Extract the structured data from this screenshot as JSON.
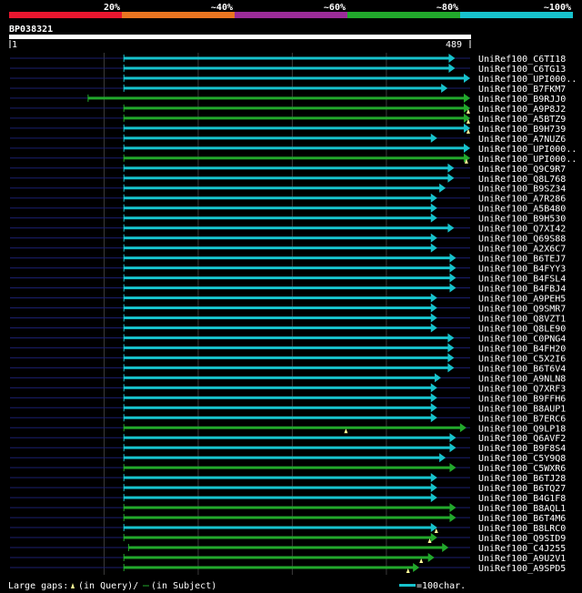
{
  "chart_data": {
    "type": "blast-hit-map",
    "query_name": "BP038321",
    "query_length": 489,
    "ruler_start": "1",
    "ruler_end": "489",
    "identity_legend": [
      {
        "label": "20%",
        "color": "#e8162f"
      },
      {
        "label": "~40%",
        "color": "#ea7521"
      },
      {
        "label": "~60%",
        "color": "#9b2c98"
      },
      {
        "label": "~80%",
        "color": "#22a82c"
      },
      {
        "label": "~100%",
        "color": "#17c2cc"
      }
    ],
    "colors": {
      "background": "#000000",
      "track": "#1b1f6e",
      "grid": "#3a3a3a",
      "gap_marker": "#ffff99"
    },
    "hits": [
      {
        "name": "UniRef100_C6TI18",
        "start": 121,
        "end": 473,
        "color": "#17c2cc",
        "gaps": []
      },
      {
        "name": "UniRef100_C6TG13",
        "start": 121,
        "end": 473,
        "color": "#17c2cc",
        "gaps": []
      },
      {
        "name": "UniRef100_UPI000..",
        "start": 121,
        "end": 489,
        "color": "#17c2cc",
        "gaps": []
      },
      {
        "name": "UniRef100_B7FKM7",
        "start": 121,
        "end": 465,
        "color": "#17c2cc",
        "gaps": []
      },
      {
        "name": "UniRef100_B9RJJ0",
        "start": 83,
        "end": 489,
        "color": "#22a82c",
        "gaps": []
      },
      {
        "name": "UniRef100_A9P8J2",
        "start": 121,
        "end": 489,
        "color": "#22a82c",
        "gaps": [
          487
        ]
      },
      {
        "name": "UniRef100_A5BTZ9",
        "start": 121,
        "end": 489,
        "color": "#22a82c",
        "gaps": [
          487
        ]
      },
      {
        "name": "UniRef100_B9H739",
        "start": 121,
        "end": 489,
        "color": "#17c2cc",
        "gaps": [
          487
        ]
      },
      {
        "name": "UniRef100_A7NUZ6",
        "start": 121,
        "end": 454,
        "color": "#17c2cc",
        "gaps": []
      },
      {
        "name": "UniRef100_UPI000..",
        "start": 121,
        "end": 489,
        "color": "#17c2cc",
        "gaps": []
      },
      {
        "name": "UniRef100_UPI000..",
        "start": 121,
        "end": 489,
        "color": "#22a82c",
        "gaps": [
          485
        ]
      },
      {
        "name": "UniRef100_Q9C9R7",
        "start": 121,
        "end": 472,
        "color": "#17c2cc",
        "gaps": []
      },
      {
        "name": "UniRef100_Q8L768",
        "start": 121,
        "end": 472,
        "color": "#17c2cc",
        "gaps": []
      },
      {
        "name": "UniRef100_B9SZ34",
        "start": 121,
        "end": 463,
        "color": "#17c2cc",
        "gaps": []
      },
      {
        "name": "UniRef100_A7R286",
        "start": 121,
        "end": 454,
        "color": "#17c2cc",
        "gaps": []
      },
      {
        "name": "UniRef100_A5B480",
        "start": 121,
        "end": 454,
        "color": "#17c2cc",
        "gaps": []
      },
      {
        "name": "UniRef100_B9H530",
        "start": 121,
        "end": 454,
        "color": "#17c2cc",
        "gaps": []
      },
      {
        "name": "UniRef100_Q7XI42",
        "start": 121,
        "end": 472,
        "color": "#17c2cc",
        "gaps": []
      },
      {
        "name": "UniRef100_Q69S88",
        "start": 121,
        "end": 454,
        "color": "#17c2cc",
        "gaps": []
      },
      {
        "name": "UniRef100_A2X6C7",
        "start": 121,
        "end": 454,
        "color": "#17c2cc",
        "gaps": []
      },
      {
        "name": "UniRef100_B6TEJ7",
        "start": 121,
        "end": 474,
        "color": "#17c2cc",
        "gaps": []
      },
      {
        "name": "UniRef100_B4FYY3",
        "start": 121,
        "end": 474,
        "color": "#17c2cc",
        "gaps": []
      },
      {
        "name": "UniRef100_B4FSL4",
        "start": 121,
        "end": 474,
        "color": "#17c2cc",
        "gaps": []
      },
      {
        "name": "UniRef100_B4FBJ4",
        "start": 121,
        "end": 474,
        "color": "#17c2cc",
        "gaps": []
      },
      {
        "name": "UniRef100_A9PEH5",
        "start": 121,
        "end": 454,
        "color": "#17c2cc",
        "gaps": []
      },
      {
        "name": "UniRef100_Q9SMR7",
        "start": 121,
        "end": 454,
        "color": "#17c2cc",
        "gaps": []
      },
      {
        "name": "UniRef100_Q8VZT1",
        "start": 121,
        "end": 454,
        "color": "#17c2cc",
        "gaps": []
      },
      {
        "name": "UniRef100_Q8LE90",
        "start": 121,
        "end": 454,
        "color": "#17c2cc",
        "gaps": []
      },
      {
        "name": "UniRef100_C0PNG4",
        "start": 121,
        "end": 472,
        "color": "#17c2cc",
        "gaps": []
      },
      {
        "name": "UniRef100_B4FH20",
        "start": 121,
        "end": 472,
        "color": "#17c2cc",
        "gaps": []
      },
      {
        "name": "UniRef100_C5X2I6",
        "start": 121,
        "end": 472,
        "color": "#17c2cc",
        "gaps": []
      },
      {
        "name": "UniRef100_B6T6V4",
        "start": 121,
        "end": 472,
        "color": "#17c2cc",
        "gaps": []
      },
      {
        "name": "UniRef100_A9NLN8",
        "start": 121,
        "end": 458,
        "color": "#17c2cc",
        "gaps": []
      },
      {
        "name": "UniRef100_Q7XRF3",
        "start": 121,
        "end": 454,
        "color": "#17c2cc",
        "gaps": []
      },
      {
        "name": "UniRef100_B9FFH6",
        "start": 121,
        "end": 454,
        "color": "#17c2cc",
        "gaps": []
      },
      {
        "name": "UniRef100_B8AUP1",
        "start": 121,
        "end": 454,
        "color": "#17c2cc",
        "gaps": []
      },
      {
        "name": "UniRef100_B7ERC6",
        "start": 121,
        "end": 454,
        "color": "#17c2cc",
        "gaps": []
      },
      {
        "name": "UniRef100_Q9LP18",
        "start": 121,
        "end": 485,
        "color": "#22a82c",
        "gaps": [
          357
        ]
      },
      {
        "name": "UniRef100_Q6AVF2",
        "start": 121,
        "end": 474,
        "color": "#17c2cc",
        "gaps": []
      },
      {
        "name": "UniRef100_B9F8S4",
        "start": 121,
        "end": 474,
        "color": "#17c2cc",
        "gaps": []
      },
      {
        "name": "UniRef100_C5Y9Q8",
        "start": 121,
        "end": 463,
        "color": "#17c2cc",
        "gaps": []
      },
      {
        "name": "UniRef100_C5WXR6",
        "start": 121,
        "end": 474,
        "color": "#22a82c",
        "gaps": []
      },
      {
        "name": "UniRef100_B6TJ28",
        "start": 121,
        "end": 454,
        "color": "#17c2cc",
        "gaps": []
      },
      {
        "name": "UniRef100_B6TQ27",
        "start": 121,
        "end": 454,
        "color": "#17c2cc",
        "gaps": []
      },
      {
        "name": "UniRef100_B4G1F8",
        "start": 121,
        "end": 454,
        "color": "#17c2cc",
        "gaps": []
      },
      {
        "name": "UniRef100_B8AQL1",
        "start": 121,
        "end": 474,
        "color": "#22a82c",
        "gaps": []
      },
      {
        "name": "UniRef100_B6T4M6",
        "start": 121,
        "end": 474,
        "color": "#22a82c",
        "gaps": []
      },
      {
        "name": "UniRef100_B8LRC0",
        "start": 121,
        "end": 454,
        "color": "#17c2cc",
        "gaps": [
          453
        ]
      },
      {
        "name": "UniRef100_Q9SID9",
        "start": 121,
        "end": 454,
        "color": "#22a82c",
        "gaps": [
          446
        ]
      },
      {
        "name": "UniRef100_C4J255",
        "start": 126,
        "end": 466,
        "color": "#22a82c",
        "gaps": []
      },
      {
        "name": "UniRef100_A9U2V1",
        "start": 121,
        "end": 451,
        "color": "#22a82c",
        "gaps": [
          437
        ]
      },
      {
        "name": "UniRef100_A9SPD5",
        "start": 121,
        "end": 435,
        "color": "#22a82c",
        "gaps": [
          423
        ]
      }
    ],
    "footer": {
      "gaps_label": "Large gaps:",
      "query_gap_label": "(in Query)/",
      "subject_gap_label": "(in Subject)",
      "scale_label": "=100char."
    }
  }
}
